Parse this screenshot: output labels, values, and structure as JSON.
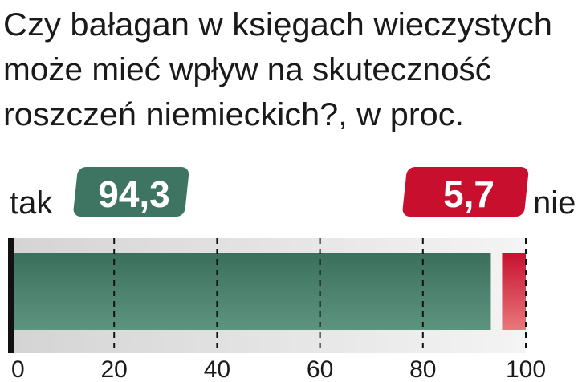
{
  "chart_data": {
    "type": "stacked-bar",
    "title": [
      "Czy bałagan w księgach wieczystych",
      "może mieć wpływ na skuteczność",
      "roszczeń niemieckich?, w proc."
    ],
    "series": [
      {
        "name": "tak",
        "color": "#3e7562",
        "values": [
          94.3
        ],
        "value_labels": [
          "94,3"
        ]
      },
      {
        "name": "nie",
        "color": "#c8102e",
        "values": [
          5.7
        ],
        "value_labels": [
          "5,7"
        ]
      }
    ],
    "xlim": [
      0,
      100
    ],
    "xticks": [
      0,
      20,
      40,
      60,
      80,
      100
    ],
    "grid": true
  }
}
